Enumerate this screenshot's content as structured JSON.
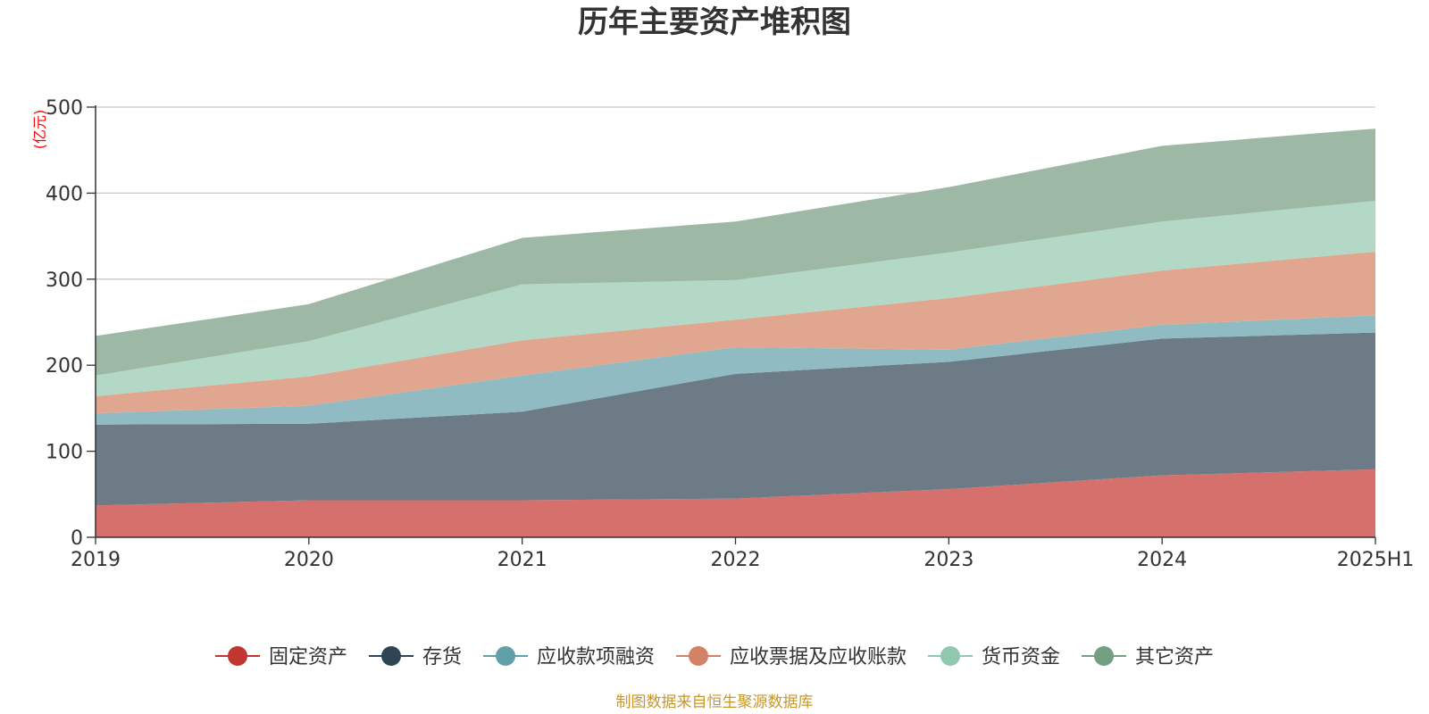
{
  "chart_data": {
    "type": "area",
    "stacked": true,
    "title": "历年主要资产堆积图",
    "unit_label": "(亿元)",
    "categories": [
      "2019",
      "2020",
      "2021",
      "2022",
      "2023",
      "2024",
      "2025H1"
    ],
    "ylim": [
      0,
      500
    ],
    "yticks": [
      0,
      100,
      200,
      300,
      400,
      500
    ],
    "grid": true,
    "legend_position": "bottom",
    "series": [
      {
        "name": "固定资产",
        "line_color": "#c23531",
        "fill_color": "#d5706d",
        "values": [
          37,
          43,
          43,
          45,
          56,
          72,
          79
        ]
      },
      {
        "name": "存货",
        "line_color": "#2f4554",
        "fill_color": "#6d7b87",
        "values": [
          94,
          89,
          103,
          145,
          148,
          159,
          159
        ]
      },
      {
        "name": "应收款项融资",
        "line_color": "#61a0a8",
        "fill_color": "#90bbc2",
        "values": [
          13,
          21,
          42,
          31,
          14,
          16,
          20
        ]
      },
      {
        "name": "应收票据及应收账款",
        "line_color": "#d48265",
        "fill_color": "#e0a690",
        "values": [
          20,
          34,
          41,
          32,
          60,
          63,
          74
        ]
      },
      {
        "name": "货币资金",
        "line_color": "#91c7ae",
        "fill_color": "#b3d8c6",
        "values": [
          24,
          41,
          65,
          46,
          53,
          57,
          59
        ]
      },
      {
        "name": "其它资产",
        "line_color": "#749f83",
        "fill_color": "#9db9a6",
        "values": [
          46,
          43,
          54,
          68,
          76,
          88,
          84
        ]
      }
    ],
    "source": "制图数据来自恒生聚源数据库"
  }
}
